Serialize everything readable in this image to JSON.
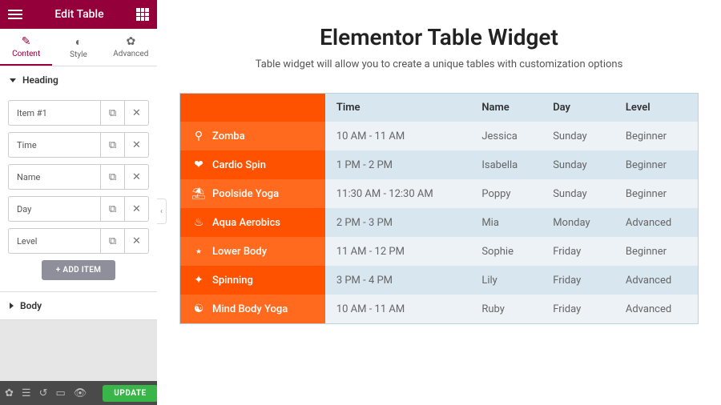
{
  "header": {
    "title": "Edit Table"
  },
  "tabs": [
    {
      "label": "Content",
      "icon": "✎",
      "active": true
    },
    {
      "label": "Style",
      "icon": "◐",
      "active": false
    },
    {
      "label": "Advanced",
      "icon": "✿",
      "active": false
    }
  ],
  "sections": {
    "heading": {
      "title": "Heading",
      "open": true,
      "items": [
        "Item #1",
        "Time",
        "Name",
        "Day",
        "Level"
      ],
      "addLabel": "+   ADD ITEM"
    },
    "body": {
      "title": "Body",
      "open": false
    }
  },
  "footer": {
    "update": "UPDATE"
  },
  "page": {
    "title": "Elementor Table Widget",
    "subtitle": "Table widget will allow you to create a unique tables with customization options"
  },
  "table": {
    "columns": [
      "",
      "Time",
      "Name",
      "Day",
      "Level"
    ],
    "rows": [
      {
        "icon": "⚲",
        "activity": "Zomba",
        "time": "10 AM - 11 AM",
        "name": "Jessica",
        "day": "Sunday",
        "level": "Beginner"
      },
      {
        "icon": "❤",
        "activity": "Cardio Spin",
        "time": "1 PM - 2 PM",
        "name": "Isabella",
        "day": "Sunday",
        "level": "Beginner"
      },
      {
        "icon": "⛱",
        "activity": "Poolside Yoga",
        "time": "11:30 AM - 12:30 AM",
        "name": "Poppy",
        "day": "Sunday",
        "level": "Beginner"
      },
      {
        "icon": "♨",
        "activity": "Aqua Aerobics",
        "time": "2 PM - 3 PM",
        "name": "Mia",
        "day": "Monday",
        "level": "Advanced"
      },
      {
        "icon": "⭑",
        "activity": "Lower Body",
        "time": "11 AM - 12 PM",
        "name": "Sophie",
        "day": "Friday",
        "level": "Beginner"
      },
      {
        "icon": "✦",
        "activity": "Spinning",
        "time": "3 PM - 4 PM",
        "name": "Lily",
        "day": "Friday",
        "level": "Advanced"
      },
      {
        "icon": "☯",
        "activity": "Mind Body Yoga",
        "time": "10 AM - 11 AM",
        "name": "Ruby",
        "day": "Friday",
        "level": "Advanced"
      }
    ]
  },
  "colors": {
    "brand": "#94003a",
    "accent": "#ff5200",
    "accentAlt": "#ff6a1f",
    "rowA": "#ecf2f6",
    "rowB": "#d8e6ef",
    "update": "#39b54a"
  }
}
